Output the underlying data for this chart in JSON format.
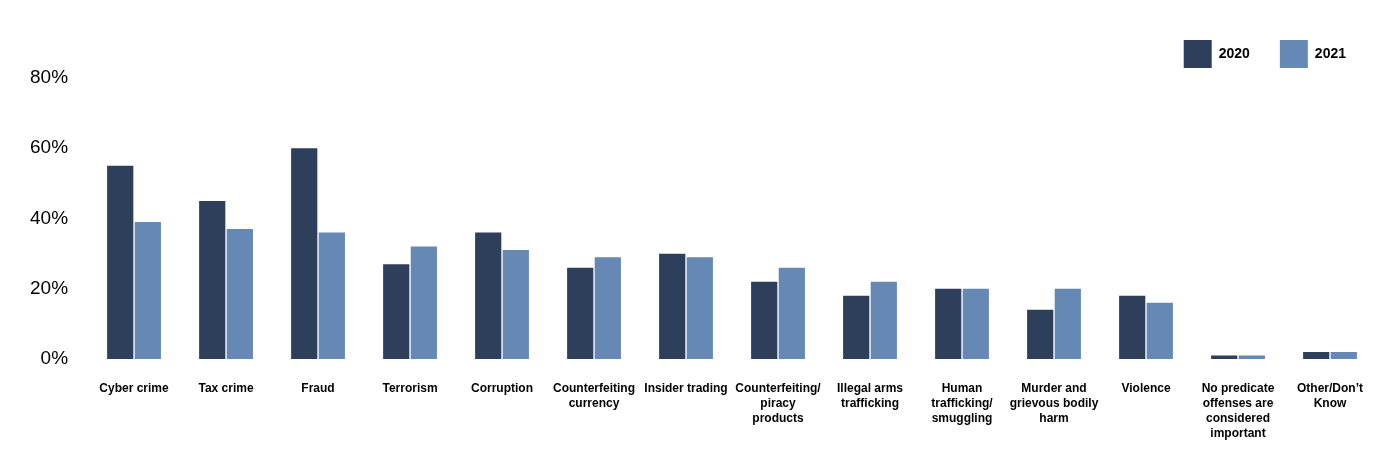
{
  "chart_data": {
    "type": "bar",
    "categories": [
      "Cyber crime",
      "Tax crime",
      "Fraud",
      "Terrorism",
      "Corruption",
      "Counterfeiting currency",
      "Insider trading",
      "Counterfeiting/ piracy products",
      "Illegal arms trafficking",
      "Human trafficking/ smuggling",
      "Murder and grievous bodily harm",
      "Violence",
      "No predicate offenses are considered important",
      "Other/Don’t Know"
    ],
    "series": [
      {
        "name": "2020",
        "color": "#2e3f5c",
        "values": [
          55,
          45,
          60,
          27,
          36,
          26,
          30,
          22,
          18,
          20,
          14,
          18,
          1,
          2
        ]
      },
      {
        "name": "2021",
        "color": "#6688b5",
        "values": [
          39,
          37,
          36,
          32,
          31,
          29,
          29,
          26,
          22,
          20,
          20,
          16,
          1,
          2
        ]
      }
    ],
    "ylim": [
      0,
      80
    ],
    "yticks": [
      {
        "value": 0,
        "label": "0%"
      },
      {
        "value": 20,
        "label": "20%"
      },
      {
        "value": 40,
        "label": "40%"
      },
      {
        "value": 60,
        "label": "60%"
      },
      {
        "value": 80,
        "label": "80%"
      }
    ],
    "grid": false,
    "legend": "top right"
  }
}
